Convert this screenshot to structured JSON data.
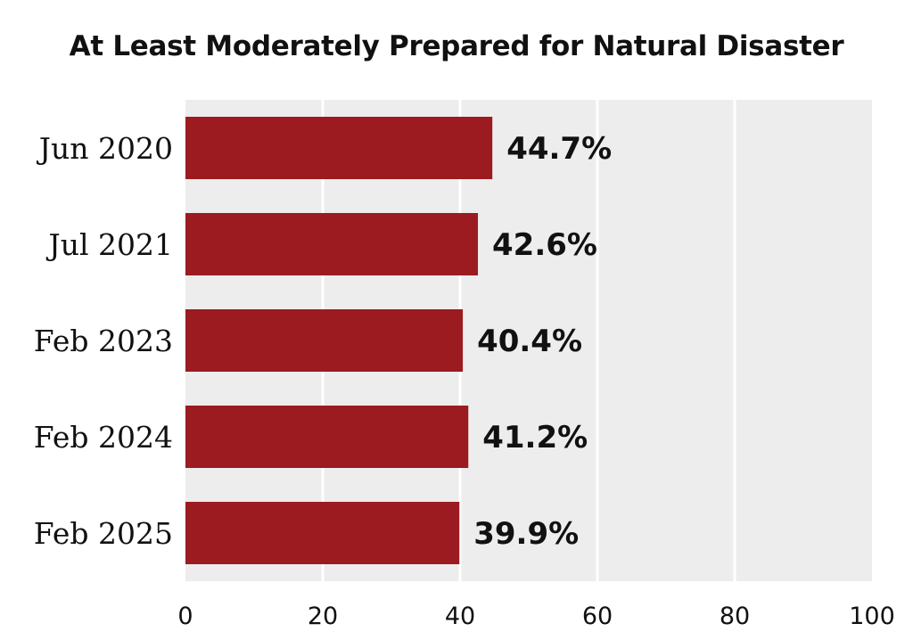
{
  "chart_data": {
    "type": "bar",
    "orientation": "horizontal",
    "title": "At Least Moderately Prepared for Natural Disaster",
    "categories": [
      "Jun 2020",
      "Jul 2021",
      "Feb 2023",
      "Feb 2024",
      "Feb 2025"
    ],
    "values": [
      44.7,
      42.6,
      40.4,
      41.2,
      39.9
    ],
    "data_labels": [
      "44.7%",
      "42.6%",
      "40.4%",
      "41.2%",
      "39.9%"
    ],
    "xlim": [
      0,
      100
    ],
    "xticks": [
      0,
      20,
      40,
      60,
      80,
      100
    ],
    "xtick_labels": [
      "0",
      "20",
      "40",
      "60",
      "80",
      "100"
    ],
    "grid": true,
    "colors": {
      "bar": "#9b1b20",
      "plot_background": "#ededed",
      "gridline": "#ffffff"
    }
  }
}
